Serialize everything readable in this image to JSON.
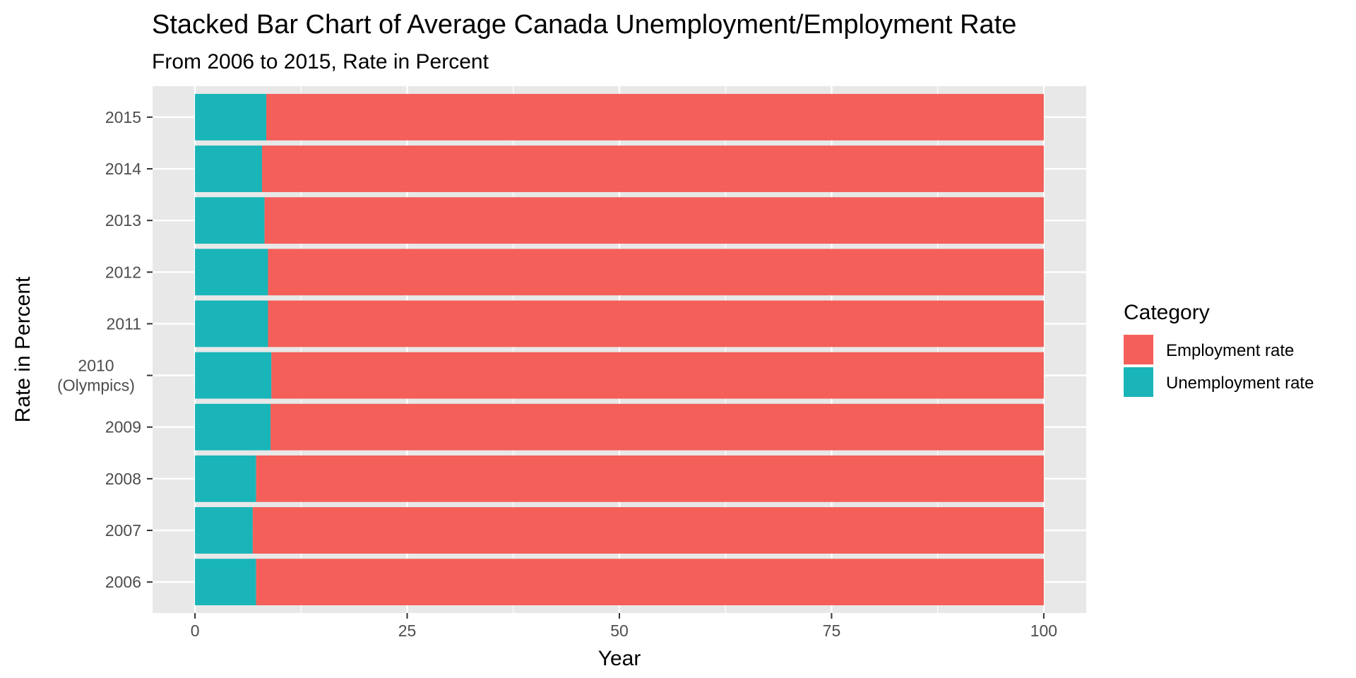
{
  "chart_data": {
    "type": "bar",
    "orientation": "horizontal",
    "stacked": true,
    "title": "Stacked Bar Chart of Average Canada Unemployment/Employment Rate",
    "subtitle": "From 2006 to 2015, Rate in Percent",
    "xlabel": "Year",
    "ylabel": "Rate in Percent",
    "xlim": [
      -5,
      105
    ],
    "x_ticks": [
      0,
      25,
      50,
      75,
      100
    ],
    "grid": true,
    "legend_position": "right",
    "legend_title": "Category",
    "categories": [
      [
        "2006"
      ],
      [
        "2007"
      ],
      [
        "2008"
      ],
      [
        "2009"
      ],
      [
        "2010",
        "(Olympics)"
      ],
      [
        "2011"
      ],
      [
        "2012"
      ],
      [
        "2013"
      ],
      [
        "2014"
      ],
      [
        "2015"
      ]
    ],
    "series": [
      {
        "name": "Unemployment rate",
        "color": "#19b5b8",
        "values": [
          7.2,
          6.8,
          7.2,
          8.9,
          9.0,
          8.6,
          8.6,
          8.2,
          7.9,
          8.4
        ]
      },
      {
        "name": "Employment rate",
        "color": "#f45f5a",
        "values": [
          92.8,
          93.2,
          92.8,
          91.1,
          91.0,
          91.4,
          91.4,
          91.8,
          92.1,
          91.6
        ]
      }
    ],
    "legend_order": [
      "Employment rate",
      "Unemployment rate"
    ],
    "colors": {
      "panel": "#e8e8e8",
      "grid": "#ffffff"
    }
  }
}
